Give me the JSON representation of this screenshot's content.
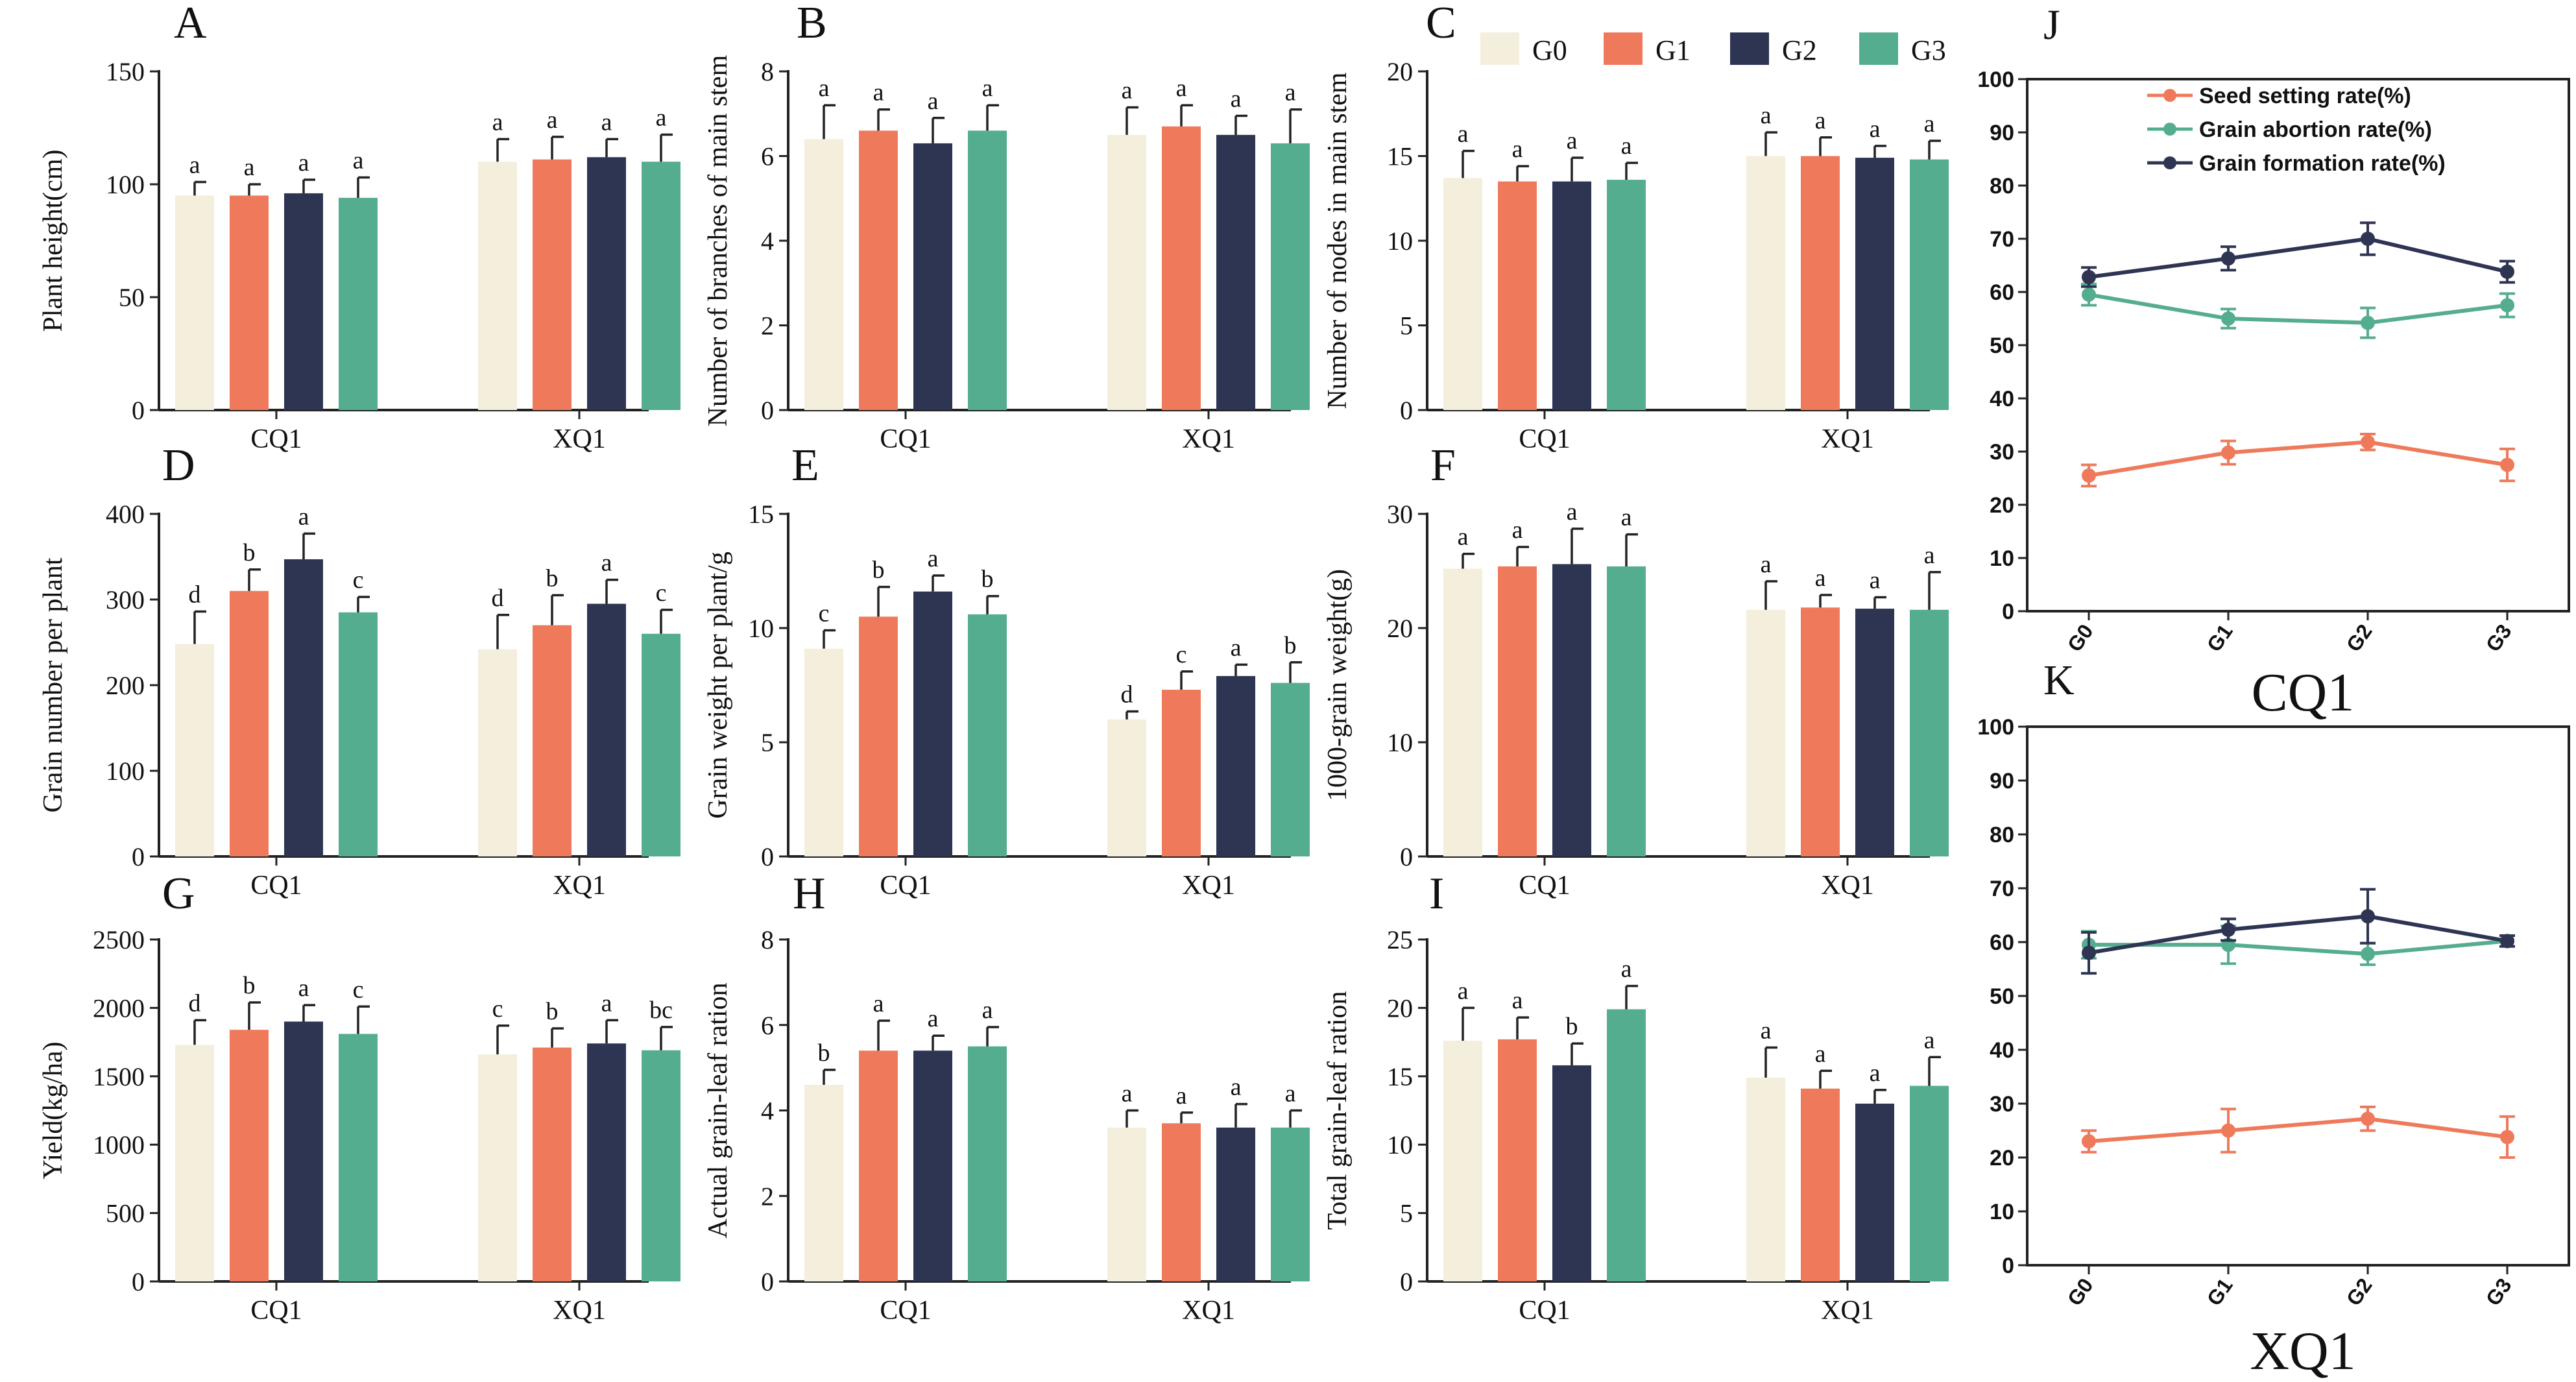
{
  "colors": {
    "G0": "#f4eedc",
    "G1": "#ef7a5b",
    "G2": "#2e3553",
    "G3": "#55ad8f",
    "seed_setting": "#ef7a5b",
    "grain_abortion": "#55ad8f",
    "grain_formation": "#2e3553"
  },
  "legend": {
    "groups": [
      "G0",
      "G1",
      "G2",
      "G3"
    ]
  },
  "chart_data": [
    {
      "panel": "A",
      "type": "bar",
      "ylabel": "Plant height(cm)",
      "ylim": [
        0,
        150
      ],
      "yticks": [
        0,
        50,
        100,
        150
      ],
      "categories": [
        "CQ1",
        "XQ1"
      ],
      "series": [
        {
          "name": "G0",
          "values": [
            95,
            110
          ],
          "errors": [
            6,
            10
          ],
          "letters": [
            "a",
            "a"
          ]
        },
        {
          "name": "G1",
          "values": [
            95,
            111
          ],
          "errors": [
            5,
            10
          ],
          "letters": [
            "a",
            "a"
          ]
        },
        {
          "name": "G2",
          "values": [
            96,
            112
          ],
          "errors": [
            6,
            8
          ],
          "letters": [
            "a",
            "a"
          ]
        },
        {
          "name": "G3",
          "values": [
            94,
            110
          ],
          "errors": [
            9,
            12
          ],
          "letters": [
            "a",
            "a"
          ]
        }
      ]
    },
    {
      "panel": "B",
      "type": "bar",
      "ylabel": "Number of branches of main stem",
      "ylim": [
        0,
        8
      ],
      "yticks": [
        0,
        2,
        4,
        6,
        8
      ],
      "categories": [
        "CQ1",
        "XQ1"
      ],
      "series": [
        {
          "name": "G0",
          "values": [
            6.4,
            6.5
          ],
          "errors": [
            0.8,
            0.65
          ],
          "letters": [
            "a",
            "a"
          ]
        },
        {
          "name": "G1",
          "values": [
            6.6,
            6.7
          ],
          "errors": [
            0.5,
            0.5
          ],
          "letters": [
            "a",
            "a"
          ]
        },
        {
          "name": "G2",
          "values": [
            6.3,
            6.5
          ],
          "errors": [
            0.6,
            0.45
          ],
          "letters": [
            "a",
            "a"
          ]
        },
        {
          "name": "G3",
          "values": [
            6.6,
            6.3
          ],
          "errors": [
            0.6,
            0.8
          ],
          "letters": [
            "a",
            "a"
          ]
        }
      ]
    },
    {
      "panel": "C",
      "type": "bar",
      "ylabel": "Number of nodes in main stem",
      "ylim": [
        0,
        20
      ],
      "yticks": [
        0,
        5,
        10,
        15,
        20
      ],
      "categories": [
        "CQ1",
        "XQ1"
      ],
      "series": [
        {
          "name": "G0",
          "values": [
            13.7,
            15.0
          ],
          "errors": [
            1.6,
            1.4
          ],
          "letters": [
            "a",
            "a"
          ]
        },
        {
          "name": "G1",
          "values": [
            13.5,
            15.0
          ],
          "errors": [
            0.9,
            1.1
          ],
          "letters": [
            "a",
            "a"
          ]
        },
        {
          "name": "G2",
          "values": [
            13.5,
            14.9
          ],
          "errors": [
            1.4,
            0.7
          ],
          "letters": [
            "a",
            "a"
          ]
        },
        {
          "name": "G3",
          "values": [
            13.6,
            14.8
          ],
          "errors": [
            1.0,
            1.1
          ],
          "letters": [
            "a",
            "a"
          ]
        }
      ]
    },
    {
      "panel": "D",
      "type": "bar",
      "ylabel": "Grain number per plant",
      "ylim": [
        0,
        400
      ],
      "yticks": [
        0,
        100,
        200,
        300,
        400
      ],
      "categories": [
        "CQ1",
        "XQ1"
      ],
      "series": [
        {
          "name": "G0",
          "values": [
            248,
            242
          ],
          "errors": [
            38,
            40
          ],
          "letters": [
            "d",
            "d"
          ]
        },
        {
          "name": "G1",
          "values": [
            310,
            270
          ],
          "errors": [
            25,
            35
          ],
          "letters": [
            "b",
            "b"
          ]
        },
        {
          "name": "G2",
          "values": [
            347,
            295
          ],
          "errors": [
            30,
            28
          ],
          "letters": [
            "a",
            "a"
          ]
        },
        {
          "name": "G3",
          "values": [
            285,
            260
          ],
          "errors": [
            18,
            28
          ],
          "letters": [
            "c",
            "c"
          ]
        }
      ]
    },
    {
      "panel": "E",
      "type": "bar",
      "ylabel": "Grain weight per plant/g",
      "ylim": [
        0,
        15
      ],
      "yticks": [
        0,
        5,
        10,
        15
      ],
      "categories": [
        "CQ1",
        "XQ1"
      ],
      "series": [
        {
          "name": "G0",
          "values": [
            9.1,
            6.0
          ],
          "errors": [
            0.8,
            0.35
          ],
          "letters": [
            "c",
            "d"
          ]
        },
        {
          "name": "G1",
          "values": [
            10.5,
            7.3
          ],
          "errors": [
            1.3,
            0.8
          ],
          "letters": [
            "b",
            "c"
          ]
        },
        {
          "name": "G2",
          "values": [
            11.6,
            7.9
          ],
          "errors": [
            0.7,
            0.5
          ],
          "letters": [
            "a",
            "a"
          ]
        },
        {
          "name": "G3",
          "values": [
            10.6,
            7.6
          ],
          "errors": [
            0.8,
            0.9
          ],
          "letters": [
            "b",
            "b"
          ]
        }
      ]
    },
    {
      "panel": "F",
      "type": "bar",
      "ylabel": "1000-grain weight(g)",
      "ylim": [
        0,
        30
      ],
      "yticks": [
        0,
        10,
        20,
        30
      ],
      "categories": [
        "CQ1",
        "XQ1"
      ],
      "series": [
        {
          "name": "G0",
          "values": [
            25.2,
            21.6
          ],
          "errors": [
            1.3,
            2.5
          ],
          "letters": [
            "a",
            "a"
          ]
        },
        {
          "name": "G1",
          "values": [
            25.4,
            21.8
          ],
          "errors": [
            1.7,
            1.1
          ],
          "letters": [
            "a",
            "a"
          ]
        },
        {
          "name": "G2",
          "values": [
            25.6,
            21.7
          ],
          "errors": [
            3.1,
            1.0
          ],
          "letters": [
            "a",
            "a"
          ]
        },
        {
          "name": "G3",
          "values": [
            25.4,
            21.6
          ],
          "errors": [
            2.8,
            3.3
          ],
          "letters": [
            "a",
            "a"
          ]
        }
      ]
    },
    {
      "panel": "G",
      "type": "bar",
      "ylabel": "Yield(kg/ha)",
      "ylim": [
        0,
        2500
      ],
      "yticks": [
        0,
        500,
        1000,
        1500,
        2000,
        2500
      ],
      "categories": [
        "CQ1",
        "XQ1"
      ],
      "series": [
        {
          "name": "G0",
          "values": [
            1730,
            1660
          ],
          "errors": [
            180,
            210
          ],
          "letters": [
            "d",
            "c"
          ]
        },
        {
          "name": "G1",
          "values": [
            1840,
            1710
          ],
          "errors": [
            200,
            140
          ],
          "letters": [
            "b",
            "b"
          ]
        },
        {
          "name": "G2",
          "values": [
            1900,
            1740
          ],
          "errors": [
            120,
            170
          ],
          "letters": [
            "a",
            "a"
          ]
        },
        {
          "name": "G3",
          "values": [
            1810,
            1690
          ],
          "errors": [
            200,
            170
          ],
          "letters": [
            "c",
            "bc"
          ]
        }
      ]
    },
    {
      "panel": "H",
      "type": "bar",
      "ylabel": "Actual grain-leaf ration",
      "ylim": [
        0,
        8
      ],
      "yticks": [
        0,
        2,
        4,
        6,
        8
      ],
      "categories": [
        "CQ1",
        "XQ1"
      ],
      "series": [
        {
          "name": "G0",
          "values": [
            4.6,
            3.6
          ],
          "errors": [
            0.35,
            0.4
          ],
          "letters": [
            "b",
            "a"
          ]
        },
        {
          "name": "G1",
          "values": [
            5.4,
            3.7
          ],
          "errors": [
            0.7,
            0.25
          ],
          "letters": [
            "a",
            "a"
          ]
        },
        {
          "name": "G2",
          "values": [
            5.4,
            3.6
          ],
          "errors": [
            0.35,
            0.55
          ],
          "letters": [
            "a",
            "a"
          ]
        },
        {
          "name": "G3",
          "values": [
            5.5,
            3.6
          ],
          "errors": [
            0.45,
            0.4
          ],
          "letters": [
            "a",
            "a"
          ]
        }
      ]
    },
    {
      "panel": "I",
      "type": "bar",
      "ylabel": "Total grain-leaf ration",
      "ylim": [
        0,
        25
      ],
      "yticks": [
        0,
        5,
        10,
        15,
        20,
        25
      ],
      "categories": [
        "CQ1",
        "XQ1"
      ],
      "series": [
        {
          "name": "G0",
          "values": [
            17.6,
            14.9
          ],
          "errors": [
            2.4,
            2.2
          ],
          "letters": [
            "a",
            "a"
          ]
        },
        {
          "name": "G1",
          "values": [
            17.7,
            14.1
          ],
          "errors": [
            1.6,
            1.3
          ],
          "letters": [
            "a",
            "a"
          ]
        },
        {
          "name": "G2",
          "values": [
            15.8,
            13.0
          ],
          "errors": [
            1.6,
            1.0
          ],
          "letters": [
            "b",
            "a"
          ]
        },
        {
          "name": "G3",
          "values": [
            19.9,
            14.3
          ],
          "errors": [
            1.7,
            2.1
          ],
          "letters": [
            "a",
            "a"
          ]
        }
      ]
    },
    {
      "panel": "J",
      "type": "line",
      "title": "CQ1",
      "ylim": [
        0,
        100
      ],
      "yticks": [
        0,
        10,
        20,
        30,
        40,
        50,
        60,
        70,
        80,
        90,
        100
      ],
      "x": [
        "G0",
        "G1",
        "G2",
        "G3"
      ],
      "legend": [
        "Seed setting rate(%)",
        "Grain abortion rate(%)",
        "Grain formation rate(%)"
      ],
      "series": [
        {
          "name": "Seed setting rate(%)",
          "values": [
            25.5,
            29.8,
            31.8,
            27.5
          ],
          "errors": [
            2.0,
            2.2,
            1.5,
            3.0
          ]
        },
        {
          "name": "Grain abortion rate(%)",
          "values": [
            59.5,
            55.0,
            54.2,
            57.5
          ],
          "errors": [
            2.0,
            1.8,
            2.8,
            2.2
          ]
        },
        {
          "name": "Grain formation rate(%)",
          "values": [
            62.8,
            66.3,
            70.0,
            63.8
          ],
          "errors": [
            1.8,
            2.2,
            3.0,
            2.0
          ]
        }
      ]
    },
    {
      "panel": "K",
      "type": "line",
      "title": "XQ1",
      "ylim": [
        0,
        100
      ],
      "yticks": [
        0,
        10,
        20,
        30,
        40,
        50,
        60,
        70,
        80,
        90,
        100
      ],
      "x": [
        "G0",
        "G1",
        "G2",
        "G3"
      ],
      "series": [
        {
          "name": "Seed setting rate(%)",
          "values": [
            23.0,
            25.0,
            27.2,
            23.8
          ],
          "errors": [
            2.0,
            4.0,
            2.2,
            3.8
          ]
        },
        {
          "name": "Grain abortion rate(%)",
          "values": [
            59.5,
            59.5,
            57.8,
            60.2
          ],
          "errors": [
            2.5,
            3.5,
            2.0,
            1.0
          ]
        },
        {
          "name": "Grain formation rate(%)",
          "values": [
            58.0,
            62.3,
            64.8,
            60.2
          ],
          "errors": [
            3.8,
            2.0,
            5.0,
            1.0
          ]
        }
      ]
    }
  ]
}
